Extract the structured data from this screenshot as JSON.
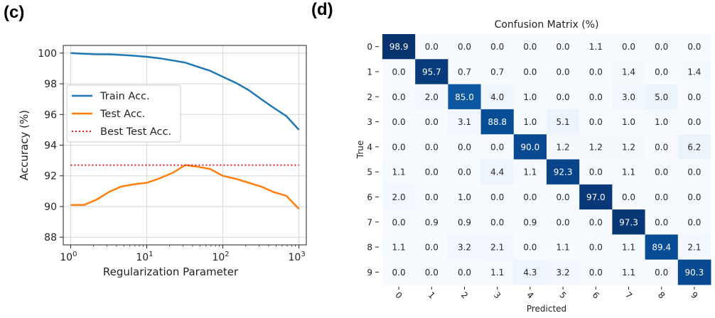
{
  "panels": {
    "c_label": "(c)",
    "d_label": "(d)"
  },
  "chart_data": [
    {
      "type": "line",
      "title": "",
      "xlabel": "Regularization Parameter",
      "ylabel": "Accuracy (%)",
      "xscale": "log",
      "xlim": [
        0.8,
        1250
      ],
      "ylim": [
        87.5,
        100.5
      ],
      "xticks": [
        {
          "value": 1,
          "base": "10",
          "exp": "0"
        },
        {
          "value": 10,
          "base": "10",
          "exp": "1"
        },
        {
          "value": 100,
          "base": "10",
          "exp": "2"
        },
        {
          "value": 1000,
          "base": "10",
          "exp": "3"
        }
      ],
      "yticks": [
        "88",
        "90",
        "92",
        "94",
        "96",
        "98",
        "100"
      ],
      "grid": true,
      "legend_position": "center-left",
      "series": [
        {
          "name": "Train Acc.",
          "color": "#1f77b4",
          "style": "solid",
          "x": [
            1,
            1.5,
            2.2,
            3.2,
            4.6,
            6.8,
            10,
            15,
            22,
            32,
            46,
            68,
            100,
            150,
            220,
            320,
            460,
            680,
            1000
          ],
          "y": [
            100.0,
            99.96,
            99.92,
            99.92,
            99.88,
            99.83,
            99.76,
            99.66,
            99.52,
            99.38,
            99.12,
            98.85,
            98.45,
            98.05,
            97.58,
            97.0,
            96.45,
            95.9,
            95.0
          ]
        },
        {
          "name": "Test Acc.",
          "color": "#ff7f0e",
          "style": "solid",
          "x": [
            1,
            1.5,
            2.2,
            3.2,
            4.6,
            6.8,
            10,
            15,
            22,
            32,
            46,
            68,
            100,
            150,
            220,
            320,
            460,
            680,
            1000
          ],
          "y": [
            90.1,
            90.1,
            90.45,
            90.95,
            91.3,
            91.45,
            91.55,
            91.85,
            92.2,
            92.7,
            92.6,
            92.45,
            92.0,
            91.8,
            91.55,
            91.3,
            90.95,
            90.7,
            89.85
          ]
        },
        {
          "name": "Best Test Acc.",
          "color": "#e0171a",
          "style": "dotted",
          "x": [
            1,
            1000
          ],
          "y": [
            92.7,
            92.7
          ]
        }
      ]
    },
    {
      "type": "heatmap",
      "title": "Confusion Matrix (%)",
      "xlabel": "Predicted",
      "ylabel": "True",
      "row_labels": [
        "0",
        "1",
        "2",
        "3",
        "4",
        "5",
        "6",
        "7",
        "8",
        "9"
      ],
      "col_labels": [
        "0",
        "1",
        "2",
        "3",
        "4",
        "5",
        "6",
        "7",
        "8",
        "9"
      ],
      "values": [
        [
          98.9,
          0.0,
          0.0,
          0.0,
          0.0,
          0.0,
          1.1,
          0.0,
          0.0,
          0.0
        ],
        [
          0.0,
          95.7,
          0.7,
          0.7,
          0.0,
          0.0,
          0.0,
          1.4,
          0.0,
          1.4
        ],
        [
          0.0,
          2.0,
          85.0,
          4.0,
          1.0,
          0.0,
          0.0,
          3.0,
          5.0,
          0.0
        ],
        [
          0.0,
          0.0,
          3.1,
          88.8,
          1.0,
          5.1,
          0.0,
          1.0,
          1.0,
          0.0
        ],
        [
          0.0,
          0.0,
          0.0,
          0.0,
          90.0,
          1.2,
          1.2,
          1.2,
          0.0,
          6.2
        ],
        [
          1.1,
          0.0,
          0.0,
          4.4,
          1.1,
          92.3,
          0.0,
          1.1,
          0.0,
          0.0
        ],
        [
          2.0,
          0.0,
          1.0,
          0.0,
          0.0,
          0.0,
          97.0,
          0.0,
          0.0,
          0.0
        ],
        [
          0.0,
          0.9,
          0.9,
          0.0,
          0.9,
          0.0,
          0.0,
          97.3,
          0.0,
          0.0
        ],
        [
          1.1,
          0.0,
          3.2,
          2.1,
          0.0,
          1.1,
          0.0,
          1.1,
          89.4,
          2.1
        ],
        [
          0.0,
          0.0,
          0.0,
          1.1,
          4.3,
          3.2,
          0.0,
          1.1,
          0.0,
          90.3
        ]
      ],
      "colormap": "Blues",
      "colorbar": false
    }
  ]
}
